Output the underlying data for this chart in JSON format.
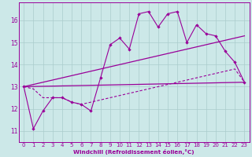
{
  "xlabel": "Windchill (Refroidissement éolien,°C)",
  "background_color": "#cce8e8",
  "line_color": "#990099",
  "grid_color": "#aacccc",
  "spine_color": "#990099",
  "xlim": [
    -0.5,
    23.5
  ],
  "ylim": [
    10.5,
    16.8
  ],
  "yticks": [
    11,
    12,
    13,
    14,
    15,
    16
  ],
  "xticks": [
    0,
    1,
    2,
    3,
    4,
    5,
    6,
    7,
    8,
    9,
    10,
    11,
    12,
    13,
    14,
    15,
    16,
    17,
    18,
    19,
    20,
    21,
    22,
    23
  ],
  "series1_x": [
    0,
    1,
    2,
    3,
    4,
    5,
    6,
    7,
    8,
    9,
    10,
    11,
    12,
    13,
    14,
    15,
    16,
    17,
    18,
    19,
    20,
    21,
    22,
    23
  ],
  "series1_y": [
    13.0,
    11.1,
    11.9,
    12.5,
    12.5,
    12.3,
    12.2,
    11.9,
    13.4,
    14.9,
    15.2,
    14.7,
    16.3,
    16.4,
    15.7,
    16.3,
    16.4,
    15.0,
    15.8,
    15.4,
    15.3,
    14.6,
    14.1,
    13.2
  ],
  "series2_x": [
    0,
    23
  ],
  "series2_y": [
    13.0,
    13.2
  ],
  "series3_x": [
    0,
    23
  ],
  "series3_y": [
    13.0,
    15.3
  ],
  "series4_x": [
    0,
    1,
    2,
    3,
    4,
    5,
    6,
    7,
    8,
    9,
    10,
    11,
    12,
    13,
    14,
    15,
    16,
    17,
    18,
    19,
    20,
    21,
    22,
    23
  ],
  "series4_y": [
    13.0,
    12.9,
    12.5,
    12.5,
    12.5,
    12.3,
    12.2,
    12.3,
    12.4,
    12.5,
    12.6,
    12.7,
    12.8,
    12.9,
    13.0,
    13.1,
    13.2,
    13.3,
    13.4,
    13.5,
    13.6,
    13.7,
    13.8,
    13.2
  ],
  "tick_fontsize": 5.0,
  "xlabel_fontsize": 5.2
}
